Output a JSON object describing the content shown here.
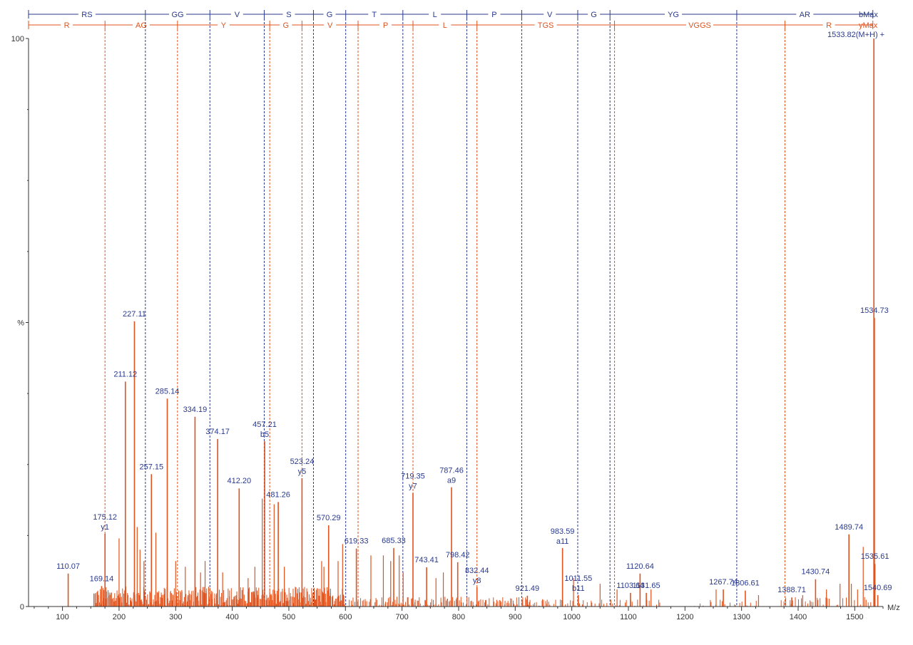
{
  "chart_data": {
    "type": "bar",
    "title": "",
    "xlabel": "M/z",
    "ylabel": "%",
    "xlim": [
      40,
      1550
    ],
    "ylim": [
      0,
      100
    ],
    "y_ticks": [
      "0",
      "%",
      "100"
    ],
    "x_ticks": [
      100,
      200,
      300,
      400,
      500,
      600,
      700,
      800,
      900,
      1000,
      1100,
      1200,
      1300,
      1400,
      1500
    ],
    "colors": {
      "b_series": "#2a3a8c",
      "y_series": "#e0531e"
    },
    "b_ladder": {
      "label": "bMax",
      "boundaries": [
        40,
        246.5,
        360.5,
        456.5,
        543.5,
        600.5,
        701.5,
        814.5,
        911.5,
        1010.5,
        1067.5,
        1291.5,
        1532
      ],
      "segments": [
        "RS",
        "GG",
        "V",
        "S",
        "G",
        "T",
        "L",
        "P",
        "V",
        "G",
        "YG",
        "AR"
      ]
    },
    "y_ladder": {
      "label": "yMax",
      "boundaries": [
        40,
        175.1,
        303.2,
        466.2,
        523.2,
        622.3,
        719.4,
        832.4,
        1075.5,
        1376.6,
        1532
      ],
      "segments": [
        "R",
        "AG",
        "Y",
        "G",
        "V",
        "P",
        "L",
        "TGS",
        "VGGS",
        "R"
      ]
    },
    "parent_label": "1533.82(M+H) +",
    "peaks": [
      {
        "mz": 110.07,
        "intensity": 5.8,
        "label": "110.07",
        "ion": ""
      },
      {
        "mz": 169.14,
        "intensity": 3.6,
        "label": "169.14",
        "ion": ""
      },
      {
        "mz": 175.12,
        "intensity": 12.8,
        "label": "175.12",
        "ion": "y1"
      },
      {
        "mz": 211.12,
        "intensity": 39.6,
        "label": "211.12",
        "ion": ""
      },
      {
        "mz": 227.11,
        "intensity": 50.2,
        "label": "227.11",
        "ion": ""
      },
      {
        "mz": 257.15,
        "intensity": 23.3,
        "label": "257.15",
        "ion": ""
      },
      {
        "mz": 285.14,
        "intensity": 36.6,
        "label": "285.14",
        "ion": ""
      },
      {
        "mz": 334.19,
        "intensity": 33.4,
        "label": "334.19",
        "ion": ""
      },
      {
        "mz": 374.17,
        "intensity": 29.5,
        "label": "374.17",
        "ion": ""
      },
      {
        "mz": 412.2,
        "intensity": 20.8,
        "label": "412.20",
        "ion": ""
      },
      {
        "mz": 457.21,
        "intensity": 29.1,
        "label": "457.21",
        "ion": "b5"
      },
      {
        "mz": 481.26,
        "intensity": 18.4,
        "label": "481.26",
        "ion": ""
      },
      {
        "mz": 523.24,
        "intensity": 22.6,
        "label": "523.24",
        "ion": "y5"
      },
      {
        "mz": 570.29,
        "intensity": 14.3,
        "label": "570.29",
        "ion": ""
      },
      {
        "mz": 619.33,
        "intensity": 10.2,
        "label": "619.33",
        "ion": ""
      },
      {
        "mz": 685.33,
        "intensity": 10.3,
        "label": "685.33",
        "ion": ""
      },
      {
        "mz": 719.35,
        "intensity": 20.0,
        "label": "719.35",
        "ion": "y7"
      },
      {
        "mz": 743.41,
        "intensity": 6.9,
        "label": "743.41",
        "ion": ""
      },
      {
        "mz": 787.46,
        "intensity": 21.0,
        "label": "787.46",
        "ion": "a9"
      },
      {
        "mz": 798.42,
        "intensity": 7.8,
        "label": "798.42",
        "ion": ""
      },
      {
        "mz": 832.44,
        "intensity": 3.4,
        "label": "832.44",
        "ion": "y8"
      },
      {
        "mz": 921.49,
        "intensity": 1.9,
        "label": "921.49",
        "ion": ""
      },
      {
        "mz": 983.59,
        "intensity": 10.3,
        "label": "983.59",
        "ion": "a11"
      },
      {
        "mz": 1011.55,
        "intensity": 2.0,
        "label": "1011.55",
        "ion": "b11"
      },
      {
        "mz": 1103.64,
        "intensity": 2.4,
        "label": "1103.64",
        "ion": ""
      },
      {
        "mz": 1120.64,
        "intensity": 5.8,
        "label": "1120.64",
        "ion": ""
      },
      {
        "mz": 1131.65,
        "intensity": 2.4,
        "label": "1131.65",
        "ion": ""
      },
      {
        "mz": 1267.74,
        "intensity": 3.0,
        "label": "1267.74",
        "ion": ""
      },
      {
        "mz": 1306.61,
        "intensity": 2.8,
        "label": "1306.61",
        "ion": ""
      },
      {
        "mz": 1388.71,
        "intensity": 1.6,
        "label": "1388.71",
        "ion": ""
      },
      {
        "mz": 1430.74,
        "intensity": 4.8,
        "label": "1430.74",
        "ion": ""
      },
      {
        "mz": 1489.74,
        "intensity": 12.7,
        "label": "1489.74",
        "ion": ""
      },
      {
        "mz": 1533.82,
        "intensity": 100,
        "label": "",
        "ion": ""
      },
      {
        "mz": 1534.73,
        "intensity": 50.8,
        "label": "1534.73",
        "ion": ""
      },
      {
        "mz": 1535.61,
        "intensity": 7.5,
        "label": "1535.61",
        "ion": ""
      },
      {
        "mz": 1540.69,
        "intensity": 2.0,
        "label": "1540.69",
        "ion": ""
      }
    ]
  }
}
